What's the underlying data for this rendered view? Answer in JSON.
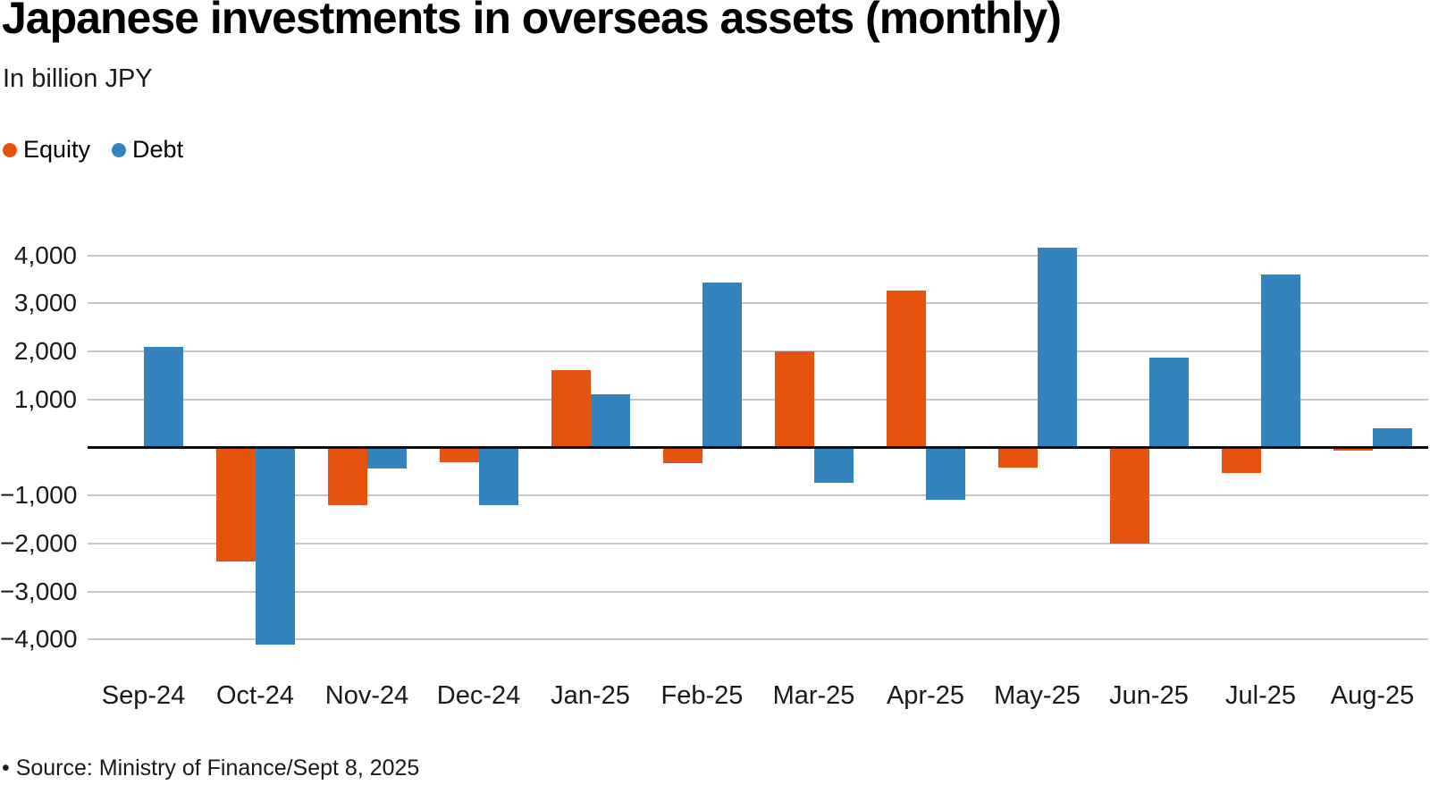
{
  "header": {
    "title": "Japanese investments in overseas assets (monthly)",
    "subtitle": "In billion JPY"
  },
  "legend": [
    {
      "label": "Equity",
      "color": "#e5530f"
    },
    {
      "label": "Debt",
      "color": "#3383be"
    }
  ],
  "footer": {
    "source": "• Source: Ministry of Finance/Sept 8, 2025"
  },
  "colors": {
    "equity": "#e5530f",
    "debt": "#3383be",
    "gridline": "#c6c6c6",
    "zero_line": "#0c0c0c",
    "text": "#191919"
  },
  "chart_data": {
    "type": "bar",
    "title": "Japanese investments in overseas assets (monthly)",
    "subtitle": "In billion JPY",
    "xlabel": "",
    "ylabel": "In billion JPY",
    "grid": true,
    "legend_position": "top-left",
    "categories": [
      "Sep-24",
      "Oct-24",
      "Nov-24",
      "Dec-24",
      "Jan-25",
      "Feb-25",
      "Mar-25",
      "Apr-25",
      "May-25",
      "Jun-25",
      "Jul-25",
      "Aug-25"
    ],
    "series": [
      {
        "name": "Equity",
        "color": "#e5530f",
        "values": [
          0,
          -2380,
          -1210,
          -310,
          1610,
          -330,
          2000,
          3270,
          -420,
          -2000,
          -540,
          -70
        ]
      },
      {
        "name": "Debt",
        "color": "#3383be",
        "values": [
          2100,
          -4100,
          -430,
          -1210,
          1110,
          3440,
          -740,
          -1090,
          4170,
          1880,
          3610,
          400
        ]
      }
    ],
    "yticks": [
      4000,
      3000,
      2000,
      1000,
      -1000,
      -2000,
      -3000,
      -4000
    ],
    "ylim": [
      -4460,
      4665
    ]
  }
}
